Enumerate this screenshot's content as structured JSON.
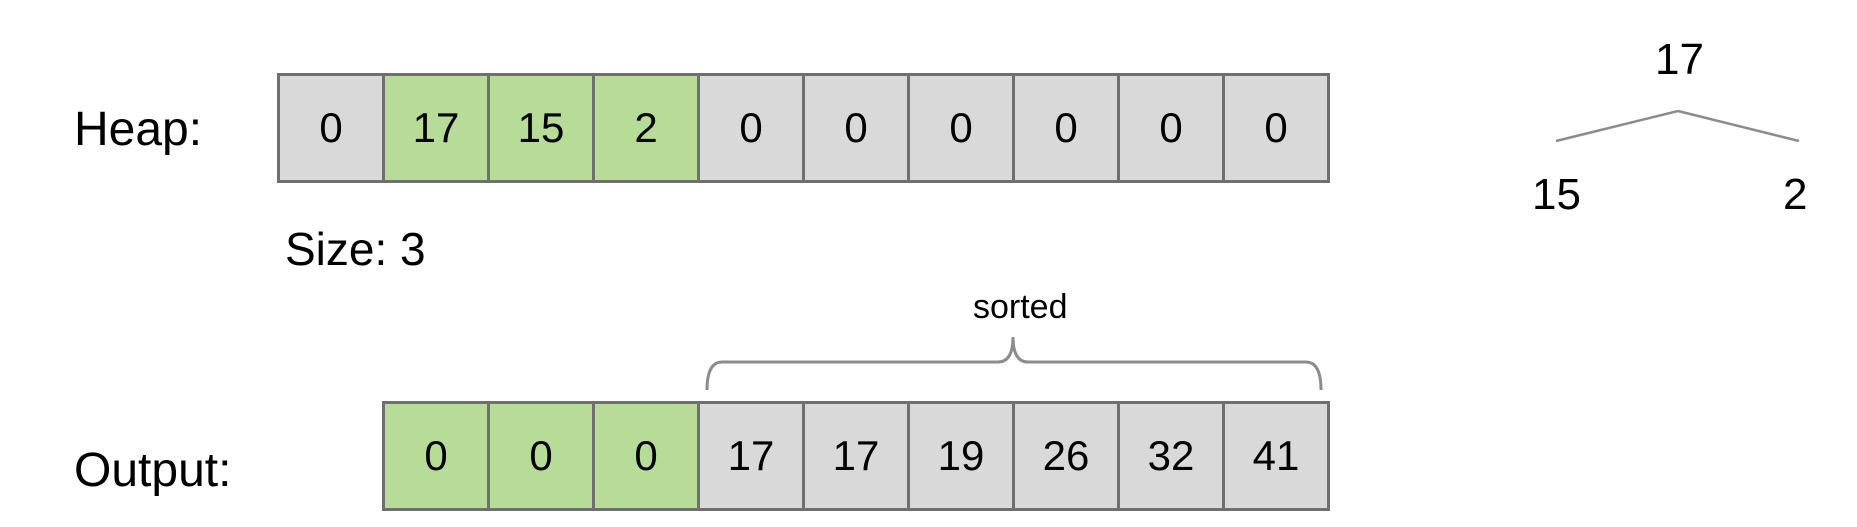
{
  "heap": {
    "label": "Heap:",
    "cells": [
      {
        "value": "0",
        "highlight": false
      },
      {
        "value": "17",
        "highlight": true
      },
      {
        "value": "15",
        "highlight": true
      },
      {
        "value": "2",
        "highlight": true
      },
      {
        "value": "0",
        "highlight": false
      },
      {
        "value": "0",
        "highlight": false
      },
      {
        "value": "0",
        "highlight": false
      },
      {
        "value": "0",
        "highlight": false
      },
      {
        "value": "0",
        "highlight": false
      },
      {
        "value": "0",
        "highlight": false
      }
    ]
  },
  "size": {
    "text": "Size: 3"
  },
  "output": {
    "label": "Output:",
    "cells": [
      {
        "value": "0",
        "highlight": true
      },
      {
        "value": "0",
        "highlight": true
      },
      {
        "value": "0",
        "highlight": true
      },
      {
        "value": "17",
        "highlight": false
      },
      {
        "value": "17",
        "highlight": false
      },
      {
        "value": "19",
        "highlight": false
      },
      {
        "value": "26",
        "highlight": false
      },
      {
        "value": "32",
        "highlight": false
      },
      {
        "value": "41",
        "highlight": false
      }
    ],
    "brace_label": "sorted"
  },
  "tree": {
    "root": "17",
    "left": "15",
    "right": "2"
  },
  "colors": {
    "highlight": "#b7dc97",
    "cell": "#d9d9d9",
    "border": "#6f6f6f",
    "line": "#8c8c8c"
  }
}
